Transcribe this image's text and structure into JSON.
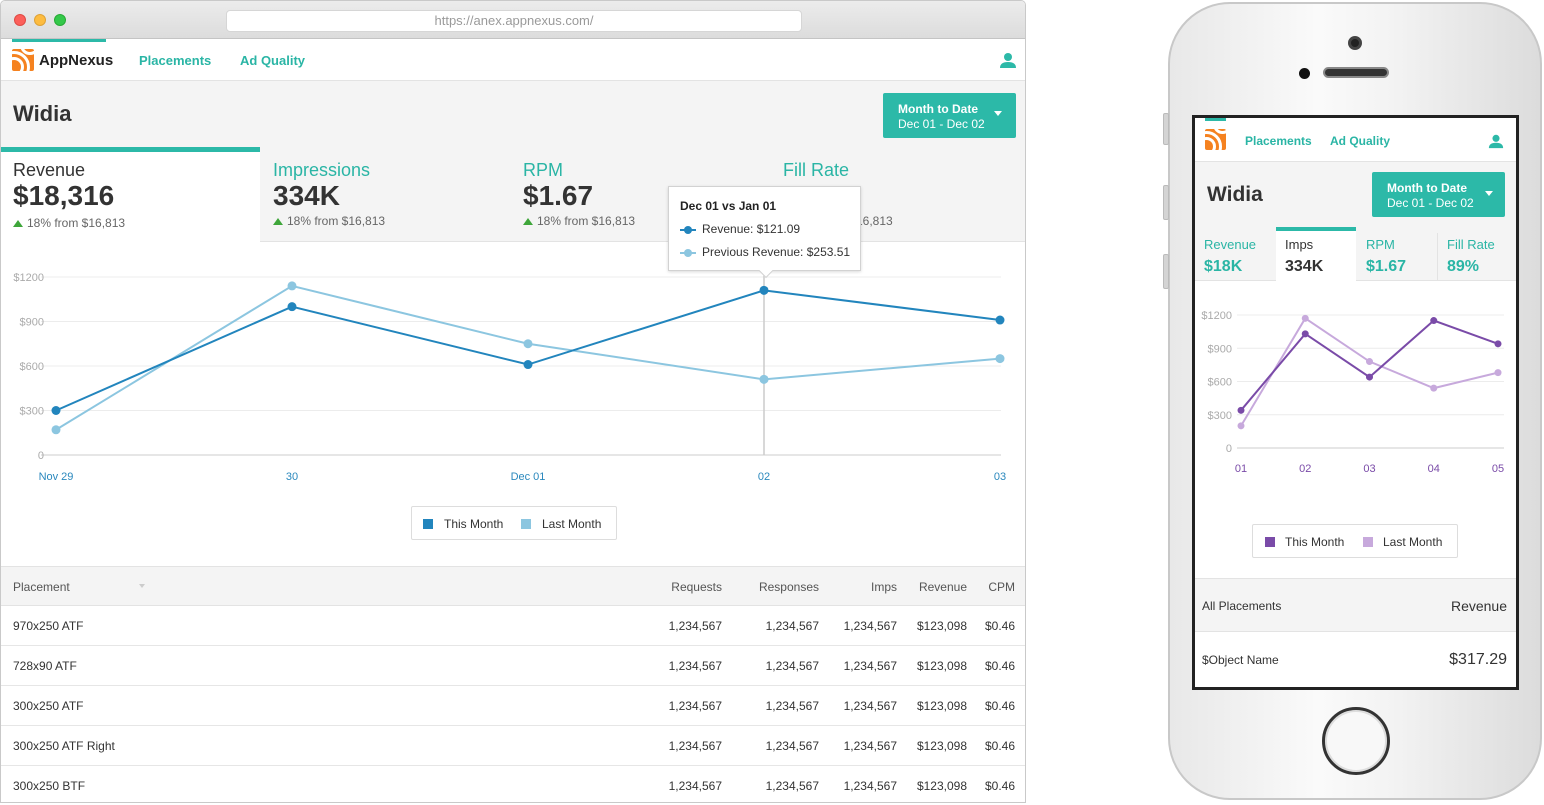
{
  "browser": {
    "url": "https://anex.appnexus.com/",
    "brand": "AppNexus",
    "nav": [
      "Placements",
      "Ad Quality"
    ],
    "title": "Widia",
    "date_button": {
      "label": "Month to Date",
      "range": "Dec 01 - Dec 02"
    },
    "metrics": [
      {
        "label": "Revenue",
        "value": "$18,316",
        "delta": "18% from $16,813"
      },
      {
        "label": "Impressions",
        "value": "334K",
        "delta": "18% from $16,813"
      },
      {
        "label": "RPM",
        "value": "$1.67",
        "delta": "18% from $16,813"
      },
      {
        "label": "Fill Rate",
        "value": "",
        "delta": "16,813"
      }
    ],
    "tooltip": {
      "title": "Dec 01 vs Jan 01",
      "rows": [
        "Revenue: $121.09",
        "Previous Revenue: $253.51"
      ]
    },
    "legend": [
      "This Month",
      "Last Month"
    ],
    "table": {
      "headers": [
        "Placement",
        "Requests",
        "Responses",
        "Imps",
        "Revenue",
        "CPM"
      ],
      "rows": [
        [
          "970x250 ATF",
          "1,234,567",
          "1,234,567",
          "1,234,567",
          "$123,098",
          "$0.46"
        ],
        [
          "728x90 ATF",
          "1,234,567",
          "1,234,567",
          "1,234,567",
          "$123,098",
          "$0.46"
        ],
        [
          "300x250 ATF",
          "1,234,567",
          "1,234,567",
          "1,234,567",
          "$123,098",
          "$0.46"
        ],
        [
          "300x250 ATF Right",
          "1,234,567",
          "1,234,567",
          "1,234,567",
          "$123,098",
          "$0.46"
        ],
        [
          "300x250 BTF",
          "1,234,567",
          "1,234,567",
          "1,234,567",
          "$123,098",
          "$0.46"
        ]
      ]
    }
  },
  "phone": {
    "nav": [
      "Placements",
      "Ad Quality"
    ],
    "title": "Widia",
    "date_button": {
      "label": "Month to Date",
      "range": "Dec 01 - Dec 02"
    },
    "metrics": [
      {
        "label": "Revenue",
        "value": "$18K"
      },
      {
        "label": "Imps",
        "value": "334K"
      },
      {
        "label": "RPM",
        "value": "$1.67"
      },
      {
        "label": "Fill Rate",
        "value": "89%"
      }
    ],
    "legend": [
      "This Month",
      "Last Month"
    ],
    "list": {
      "header": {
        "left": "All Placements",
        "right": "Revenue"
      },
      "row": {
        "left": "$Object Name",
        "right": "$317.29"
      }
    }
  },
  "colors": {
    "teal": "#2cb9a8",
    "this_month_desktop": "#2285bd",
    "last_month_desktop": "#8cc6e0",
    "this_month_phone": "#7a4ba8",
    "last_month_phone": "#c7a9dc",
    "logo": "#f58220"
  },
  "icons": [
    "appnexus-logo-icon",
    "user-icon",
    "caret-down-icon",
    "sort-caret-icon"
  ],
  "chart_data": [
    {
      "type": "line",
      "categories": [
        "Nov 29",
        "30",
        "Dec 01",
        "02",
        "03"
      ],
      "yticks": [
        "0",
        "$300",
        "$600",
        "$900",
        "$1200"
      ],
      "ylim": [
        0,
        1200
      ],
      "series": [
        {
          "name": "This Month",
          "values": [
            300,
            1000,
            610,
            1110,
            910
          ]
        },
        {
          "name": "Last Month",
          "values": [
            170,
            1140,
            750,
            510,
            650
          ]
        }
      ],
      "highlight_index": 3,
      "legend_position": "bottom"
    },
    {
      "type": "line",
      "categories": [
        "01",
        "02",
        "03",
        "04",
        "05"
      ],
      "yticks": [
        "0",
        "$300",
        "$600",
        "$900",
        "$1200"
      ],
      "ylim": [
        0,
        1200
      ],
      "series": [
        {
          "name": "This Month",
          "values": [
            340,
            1030,
            640,
            1150,
            940
          ]
        },
        {
          "name": "Last Month",
          "values": [
            200,
            1170,
            780,
            540,
            680
          ]
        }
      ],
      "legend_position": "bottom"
    }
  ]
}
